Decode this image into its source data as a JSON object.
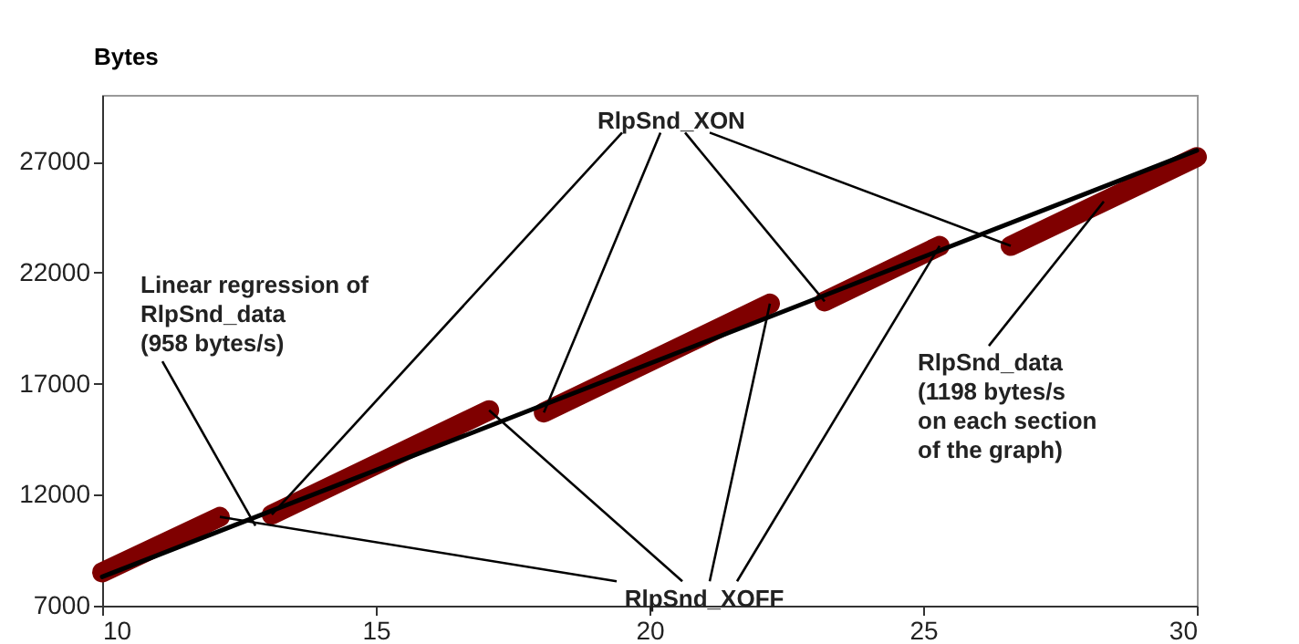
{
  "chart_data": {
    "type": "line",
    "ylabel": "Bytes",
    "xlim": [
      10,
      30
    ],
    "xticks": [
      10,
      15,
      20,
      25,
      30
    ],
    "ylim": [
      7000,
      30000
    ],
    "yticks": [
      7000,
      12000,
      17000,
      22000,
      27000
    ],
    "grid": false,
    "marker": "none",
    "line_style": "solid",
    "series": [
      {
        "color": "#7f0000",
        "x": [
          10,
          12.15
        ],
        "values": [
          8500,
          11000
        ]
      },
      {
        "color": "#7f0000",
        "x": [
          13.1,
          17.07
        ],
        "values": [
          11100,
          15800
        ]
      },
      {
        "color": "#7f0000",
        "x": [
          18.07,
          22.2
        ],
        "values": [
          15700,
          20600
        ]
      },
      {
        "color": "#7f0000",
        "x": [
          23.2,
          25.3
        ],
        "values": [
          20700,
          23200
        ]
      },
      {
        "color": "#7f0000",
        "x": [
          26.6,
          30
        ],
        "values": [
          23200,
          27200
        ]
      },
      {
        "color": "#000000",
        "x": [
          10,
          30
        ],
        "values": [
          8300,
          27500
        ]
      }
    ],
    "annotations": [
      {
        "text": "Linear regression of\nRlpSnd_data\n(958 bytes/s)",
        "x": 12.8,
        "y": 10600
      },
      {
        "text": "RlpSnd_XON",
        "x": 13.1,
        "y": 11100
      },
      {
        "text": "RlpSnd_XOFF",
        "x": 12.15,
        "y": 11000
      },
      {
        "text": "RlpSnd_data\n(1198 bytes/s\non each section\nof the graph)",
        "x": 28.3,
        "y": 25200
      }
    ]
  }
}
